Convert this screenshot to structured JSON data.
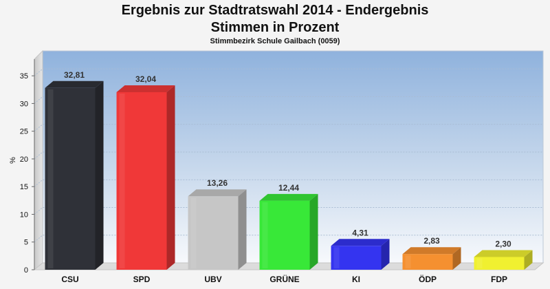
{
  "header": {
    "title_line1": "Ergebnis zur Stadtratswahl 2014 - Endergebnis",
    "title_line2": "Stimmen in Prozent",
    "subtitle": "Stimmbezirk Schule Gailbach (0059)"
  },
  "chart_data": {
    "type": "bar",
    "title": "Ergebnis zur Stadtratswahl 2014 - Endergebnis Stimmen in Prozent",
    "subtitle": "Stimmbezirk Schule Gailbach (0059)",
    "xlabel": "",
    "ylabel": "%",
    "ylim": [
      0,
      38
    ],
    "yticks": [
      0,
      5,
      10,
      15,
      20,
      25,
      30,
      35
    ],
    "grid": true,
    "categories": [
      "CSU",
      "SPD",
      "UBV",
      "GRÜNE",
      "KI",
      "ÖDP",
      "FDP"
    ],
    "values": [
      32.81,
      32.04,
      13.26,
      12.44,
      4.31,
      2.83,
      2.3
    ],
    "value_labels": [
      "32,81",
      "32,04",
      "13,26",
      "12,44",
      "4,31",
      "2,83",
      "2,30"
    ],
    "colors": [
      "#2f3138",
      "#f03838",
      "#c6c6c6",
      "#38e838",
      "#3434f0",
      "#f59030",
      "#f0f030"
    ]
  }
}
